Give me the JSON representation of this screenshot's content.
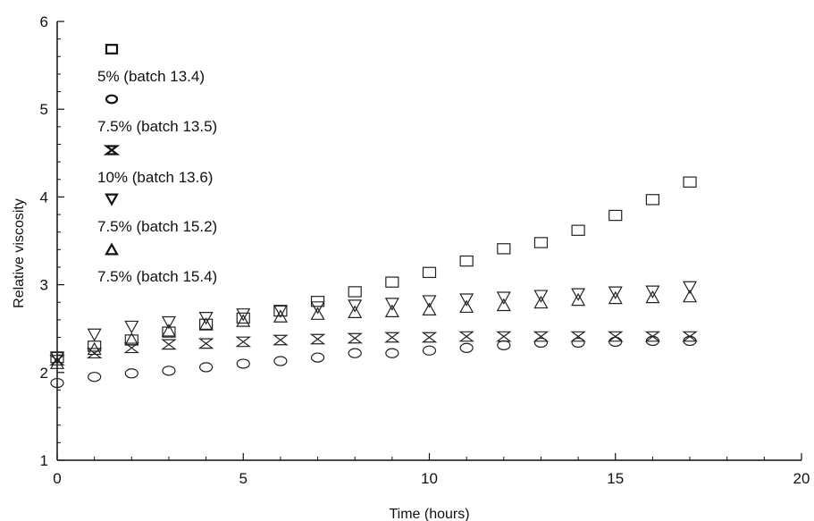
{
  "chart_data": {
    "type": "scatter",
    "title": "",
    "xlabel": "Time (hours)",
    "ylabel": "Relative viscosity",
    "xlim": [
      0,
      20
    ],
    "ylim": [
      1,
      6
    ],
    "xticks": [
      0,
      5,
      10,
      15,
      20
    ],
    "yticks": [
      1,
      2,
      3,
      4,
      5,
      6
    ],
    "grid": false,
    "legend_position": "top-left",
    "series": [
      {
        "name": "5% (batch 13.4)",
        "marker": "square",
        "x": [
          0,
          1,
          2,
          3,
          4,
          5,
          6,
          7,
          8,
          9,
          10,
          11,
          12,
          13,
          14,
          15,
          16,
          17
        ],
        "y": [
          2.17,
          2.3,
          2.37,
          2.46,
          2.55,
          2.62,
          2.7,
          2.81,
          2.92,
          3.03,
          3.14,
          3.27,
          3.41,
          3.48,
          3.62,
          3.79,
          3.97,
          4.17
        ]
      },
      {
        "name": "7.5% (batch 13.5)",
        "marker": "circle",
        "x": [
          0,
          1,
          2,
          3,
          4,
          5,
          6,
          7,
          8,
          9,
          10,
          11,
          12,
          13,
          14,
          15,
          16,
          17
        ],
        "y": [
          1.88,
          1.95,
          1.99,
          2.02,
          2.06,
          2.1,
          2.13,
          2.17,
          2.22,
          2.22,
          2.25,
          2.28,
          2.31,
          2.34,
          2.34,
          2.35,
          2.36,
          2.36
        ]
      },
      {
        "name": "10% (batch 13.6)",
        "marker": "bowtie",
        "x": [
          0,
          1,
          2,
          3,
          4,
          5,
          6,
          7,
          8,
          9,
          10,
          11,
          12,
          13,
          14,
          15,
          16,
          17
        ],
        "y": [
          2.14,
          2.22,
          2.28,
          2.32,
          2.33,
          2.35,
          2.37,
          2.38,
          2.39,
          2.4,
          2.4,
          2.41,
          2.41,
          2.41,
          2.41,
          2.41,
          2.41,
          2.41
        ]
      },
      {
        "name": "7.5% (batch 15.2)",
        "marker": "triangle-down",
        "x": [
          0,
          1,
          2,
          3,
          4,
          5,
          6,
          7,
          8,
          9,
          10,
          11,
          12,
          13,
          14,
          15,
          16,
          17
        ],
        "y": [
          2.17,
          2.43,
          2.52,
          2.57,
          2.62,
          2.66,
          2.7,
          2.74,
          2.76,
          2.78,
          2.81,
          2.83,
          2.85,
          2.87,
          2.89,
          2.91,
          2.92,
          2.97
        ]
      },
      {
        "name": "7.5% (batch 15.4)",
        "marker": "triangle-up",
        "x": [
          0,
          1,
          2,
          3,
          4,
          5,
          6,
          7,
          8,
          9,
          10,
          11,
          12,
          13,
          14,
          15,
          16,
          17
        ],
        "y": [
          2.11,
          2.27,
          2.38,
          2.48,
          2.55,
          2.59,
          2.64,
          2.67,
          2.69,
          2.7,
          2.72,
          2.75,
          2.77,
          2.8,
          2.83,
          2.85,
          2.86,
          2.87
        ]
      }
    ]
  }
}
